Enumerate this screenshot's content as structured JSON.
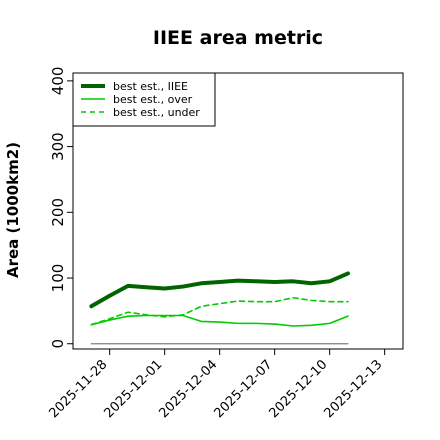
{
  "chart_data": {
    "type": "line",
    "title": "IIEE area metric",
    "xlabel": "",
    "ylabel": "Area (1000km2)",
    "x": [
      "2025-11-27",
      "2025-11-28",
      "2025-11-29",
      "2025-11-30",
      "2025-12-01",
      "2025-12-02",
      "2025-12-03",
      "2025-12-04",
      "2025-12-05",
      "2025-12-06",
      "2025-12-07",
      "2025-12-08",
      "2025-12-09",
      "2025-12-10",
      "2025-12-11"
    ],
    "xlim": [
      "2025-11-26",
      "2025-12-14"
    ],
    "xticks": [
      "2025-11-28",
      "2025-12-01",
      "2025-12-04",
      "2025-12-07",
      "2025-12-10",
      "2025-12-13"
    ],
    "ylim": [
      -8,
      412
    ],
    "yticks": [
      0,
      100,
      200,
      300,
      400
    ],
    "grid": false,
    "legend_position": "top-left",
    "series": [
      {
        "name": "best est., IIEE",
        "color": "#006400",
        "style": "solid-thick",
        "values": [
          57,
          73,
          88,
          86,
          84,
          87,
          92,
          94,
          96,
          95,
          94,
          95,
          92,
          95,
          107
        ]
      },
      {
        "name": "best est., over",
        "color": "#00cc00",
        "style": "solid",
        "values": [
          29,
          36,
          42,
          43,
          43,
          43,
          34,
          33,
          31,
          31,
          30,
          27,
          28,
          31,
          42
        ]
      },
      {
        "name": "best est., under",
        "color": "#00cc00",
        "style": "dashed",
        "values": [
          29,
          38,
          48,
          44,
          41,
          44,
          57,
          61,
          65,
          64,
          64,
          70,
          66,
          64,
          64
        ]
      },
      {
        "name": "",
        "color": "#808080",
        "style": "solid-thin",
        "values": [
          0,
          0,
          0,
          0,
          0,
          0,
          0,
          0,
          0,
          0,
          0,
          0,
          0,
          0,
          0
        ]
      }
    ]
  }
}
